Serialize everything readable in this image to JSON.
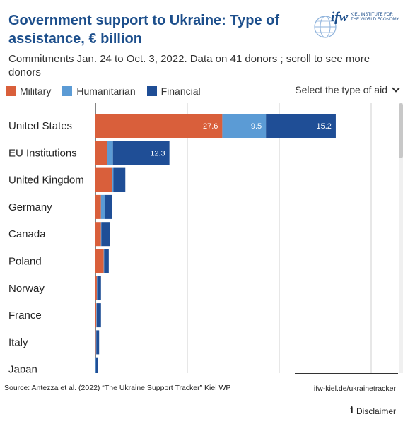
{
  "header": {
    "title": "Government support to Ukraine: Type of assistance, € billion",
    "subtitle": "Commitments Jan. 24 to Oct. 3, 2022. Data on 41 donors ; scroll to see more donors"
  },
  "logo": {
    "text": "ifw",
    "subtext": "KIEL INSTITUTE FOR THE WORLD ECONOMY"
  },
  "legend": [
    {
      "label": "Military",
      "color": "#d95f3b"
    },
    {
      "label": "Humanitarian",
      "color": "#5b9bd5"
    },
    {
      "label": "Financial",
      "color": "#1f4e96"
    }
  ],
  "dropdown": {
    "label": "Select the type of aid"
  },
  "chart_data": {
    "type": "bar",
    "orientation": "horizontal",
    "stacked": true,
    "categories": [
      "United States",
      "EU Institutions",
      "United Kingdom",
      "Germany",
      "Canada",
      "Poland",
      "Norway",
      "France",
      "Italy",
      "Japan"
    ],
    "series": [
      {
        "name": "Military",
        "color": "#d95f3b",
        "values": [
          27.6,
          2.5,
          3.7,
          1.2,
          1.2,
          1.8,
          0.3,
          0.2,
          0.1,
          0.0
        ],
        "labels": [
          "27.6",
          "",
          "",
          "",
          "",
          "",
          "",
          "",
          "",
          ""
        ]
      },
      {
        "name": "Humanitarian",
        "color": "#5b9bd5",
        "values": [
          9.5,
          1.3,
          0.2,
          0.9,
          0.1,
          0.1,
          0.1,
          0.1,
          0.1,
          0.1
        ],
        "labels": [
          "9.5",
          "",
          "",
          "",
          "",
          "",
          "",
          "",
          "",
          ""
        ]
      },
      {
        "name": "Financial",
        "color": "#1f4e96",
        "values": [
          15.2,
          12.3,
          2.6,
          1.5,
          1.8,
          1.0,
          0.8,
          0.9,
          0.6,
          0.5
        ],
        "labels": [
          "15.2",
          "12.3",
          "",
          "",
          "",
          "",
          "",
          "",
          "",
          ""
        ]
      }
    ],
    "xlim": [
      0,
      60
    ],
    "gridlines": [
      0,
      20,
      40,
      60
    ],
    "grid": true
  },
  "footer": {
    "source": "Source: Antezza et al. (2022) “The Ukraine Support Tracker” Kiel WP",
    "site": "ifw-kiel.de/ukrainetracker",
    "disclaimer": "Disclaimer"
  }
}
